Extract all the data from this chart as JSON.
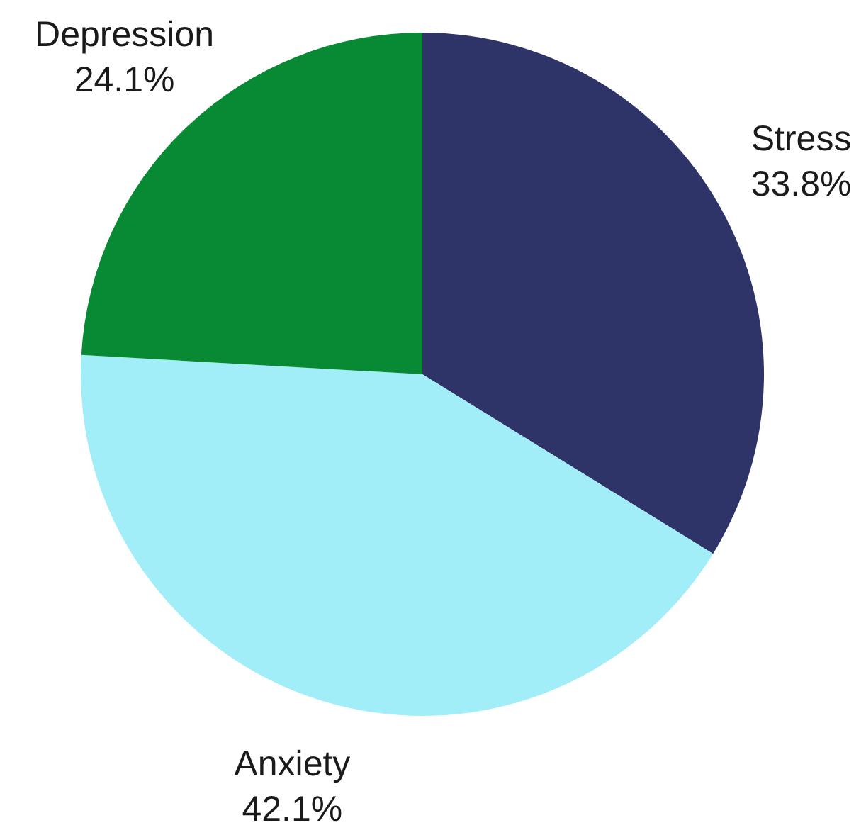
{
  "chart_data": {
    "type": "pie",
    "categories": [
      "Stress",
      "Anxiety",
      "Depression"
    ],
    "values": [
      33.8,
      42.1,
      24.1
    ],
    "colors": [
      "#2e3368",
      "#a2eef8",
      "#078a33"
    ],
    "value_labels": [
      "33.8%",
      "42.1%",
      "24.1%"
    ],
    "legend": false
  }
}
